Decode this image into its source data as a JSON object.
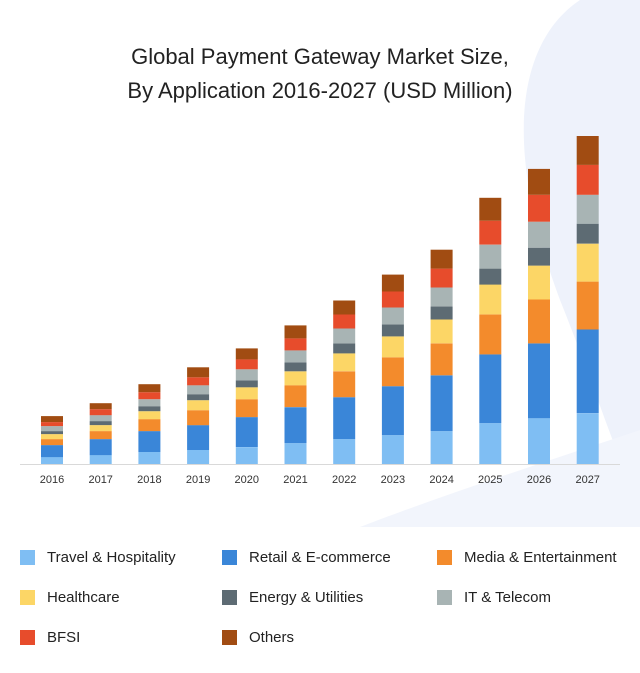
{
  "chart_data": {
    "type": "bar",
    "stacked": true,
    "title_lines": [
      "Global Payment Gateway Market Size,",
      "By Application 2016-2027 (USD Million)"
    ],
    "xlabel": "",
    "ylabel": "",
    "grid": false,
    "legend_position": "bottom",
    "categories": [
      "2016",
      "2017",
      "2018",
      "2019",
      "2020",
      "2021",
      "2022",
      "2023",
      "2024",
      "2025",
      "2026",
      "2027"
    ],
    "series": [
      {
        "name": "Travel & Hospitality",
        "color": "#7fbef3",
        "values": [
          7,
          9,
          12,
          14,
          17,
          21,
          25,
          29,
          33,
          41,
          46,
          51
        ]
      },
      {
        "name": "Retail & E-commerce",
        "color": "#3a86d8",
        "values": [
          12,
          16,
          21,
          25,
          30,
          36,
          42,
          49,
          56,
          69,
          75,
          84
        ]
      },
      {
        "name": "Media & Entertainment",
        "color": "#f38b2c",
        "values": [
          6,
          8,
          12,
          15,
          18,
          22,
          26,
          29,
          32,
          40,
          44,
          48
        ]
      },
      {
        "name": "Healthcare",
        "color": "#fcd666",
        "values": [
          5,
          6,
          8,
          10,
          12,
          14,
          18,
          21,
          24,
          30,
          34,
          38
        ]
      },
      {
        "name": "Energy & Utilities",
        "color": "#5d6b73",
        "values": [
          3,
          4,
          5,
          6,
          7,
          9,
          10,
          12,
          13,
          16,
          18,
          20
        ]
      },
      {
        "name": "IT & Telecom",
        "color": "#a8b4b4",
        "values": [
          5,
          6,
          7,
          9,
          11,
          12,
          15,
          17,
          19,
          24,
          26,
          29
        ]
      },
      {
        "name": "BFSI",
        "color": "#e74c2c",
        "values": [
          4,
          6,
          7,
          8,
          10,
          12,
          14,
          16,
          19,
          24,
          27,
          30
        ]
      },
      {
        "name": "Others",
        "color": "#a14c12",
        "values": [
          6,
          6,
          8,
          10,
          11,
          13,
          14,
          17,
          19,
          23,
          26,
          29
        ]
      }
    ]
  }
}
